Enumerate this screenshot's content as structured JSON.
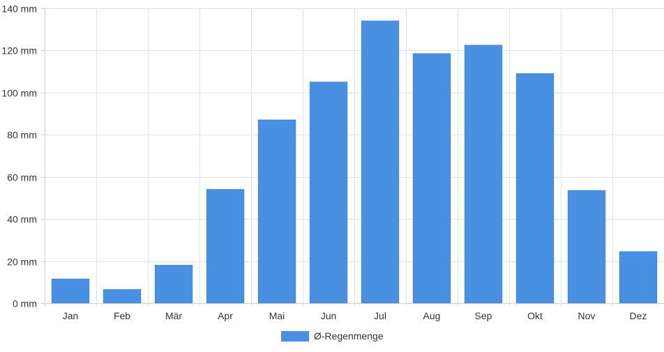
{
  "chart_data": {
    "type": "bar",
    "categories": [
      "Jan",
      "Feb",
      "Mär",
      "Apr",
      "Mai",
      "Jun",
      "Jul",
      "Aug",
      "Sep",
      "Okt",
      "Nov",
      "Dez"
    ],
    "series": [
      {
        "name": "Ø-Regenmenge",
        "color": "#4a90e2",
        "values": [
          11.5,
          6.5,
          18,
          54,
          87,
          105,
          134,
          118.5,
          122.5,
          109,
          53.5,
          24.5
        ]
      }
    ],
    "yticks": [
      "0 mm",
      "20 mm",
      "40 mm",
      "60 mm",
      "80 mm",
      "100 mm",
      "120 mm",
      "140 mm"
    ],
    "ylim": [
      0,
      140
    ],
    "ystep": 20,
    "grid": true,
    "legend_position": "bottom"
  }
}
